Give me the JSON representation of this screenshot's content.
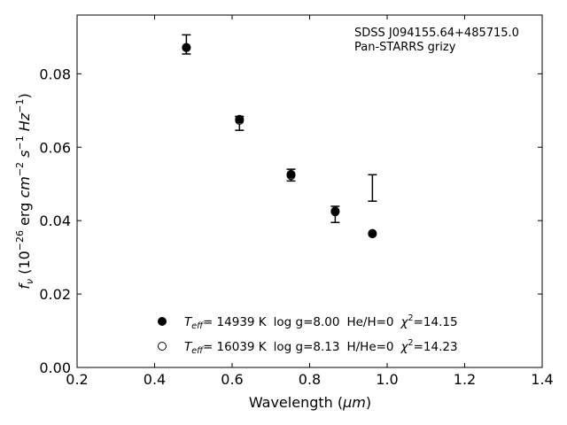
{
  "chart_data": {
    "type": "scatter",
    "xlabel_prefix": "Wavelength (",
    "xlabel_unit": "μm",
    "xlabel_suffix": ")",
    "ylabel": "f_ν (10^−26 erg cm^−2 s^−1 Hz^−1)",
    "xlim": [
      0.2,
      1.4
    ],
    "ylim": [
      0.0,
      0.096
    ],
    "xticks": [
      0.2,
      0.4,
      0.6,
      0.8,
      1.0,
      1.2,
      1.4
    ],
    "xtick_labels": [
      "0.2",
      "0.4",
      "0.6",
      "0.8",
      "1.0",
      "1.2",
      "1.4"
    ],
    "yticks": [
      0.0,
      0.02,
      0.04,
      0.06,
      0.08
    ],
    "ytick_labels": [
      "0.00",
      "0.02",
      "0.04",
      "0.06",
      "0.08"
    ],
    "grid": false,
    "annotations": [
      "SDSS J094155.64+485715.0",
      "Pan-STARRS grizy"
    ],
    "observed": {
      "x": [
        0.482,
        0.619,
        0.752,
        0.866,
        0.962
      ],
      "y": [
        0.088,
        0.0665,
        0.0524,
        0.0417,
        0.0489
      ],
      "yerr_low": [
        0.088,
        0.0665,
        0.0524,
        0.0417,
        0.0489
      ],
      "yerr_high": [
        0.088,
        0.0665,
        0.0524,
        0.0417,
        0.0489
      ],
      "err": [
        0.0026,
        0.0019,
        0.0016,
        0.0022,
        0.0036
      ]
    },
    "series": [
      {
        "marker": "filled",
        "x": [
          0.482,
          0.619,
          0.752,
          0.866,
          0.962
        ],
        "y": [
          0.0872,
          0.0676,
          0.0526,
          0.0426,
          0.0365
        ],
        "label_parts": {
          "teff": "= 14939 K",
          "logg": "log g=8.00",
          "comp": "He/H=0",
          "chi": "=14.15"
        }
      },
      {
        "marker": "open",
        "x": [
          0.482,
          0.619,
          0.752,
          0.866,
          0.962
        ],
        "y": [
          0.0871,
          0.0673,
          0.0523,
          0.0424,
          0.0364
        ],
        "label_parts": {
          "teff": "= 16039 K",
          "logg": "log g=8.13",
          "comp": "H/He=0",
          "chi": "=14.23"
        }
      }
    ],
    "legend_position": "lower-center"
  }
}
